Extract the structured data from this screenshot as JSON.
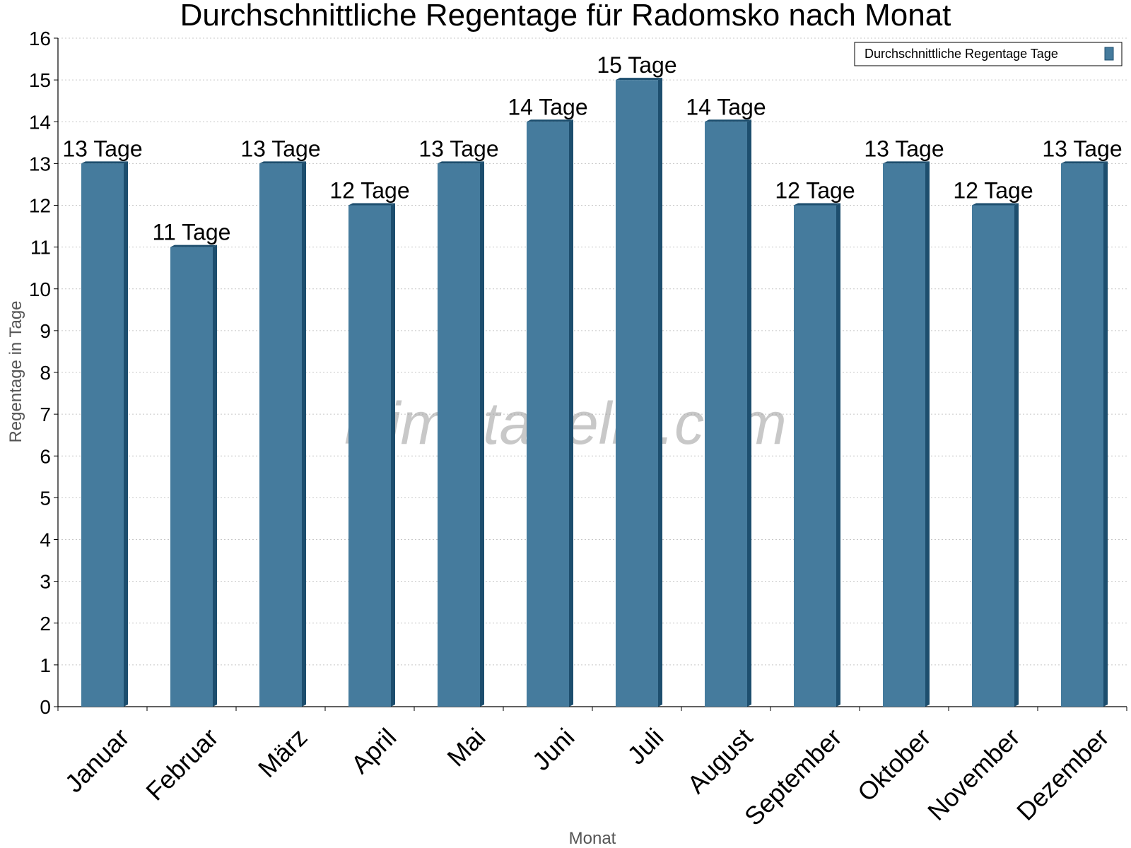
{
  "chart_data": {
    "type": "bar",
    "title": "Durchschnittliche Regentage für Radomsko nach Monat",
    "xlabel": "Monat",
    "ylabel": "Regentage in Tage",
    "ylim": [
      0,
      16
    ],
    "yticks": [
      "0",
      "1",
      "2",
      "3",
      "4",
      "5",
      "6",
      "7",
      "8",
      "9",
      "10",
      "11",
      "12",
      "13",
      "14",
      "15",
      "16"
    ],
    "grid": true,
    "legend_position": "top-right",
    "categories": [
      "Januar",
      "Februar",
      "März",
      "April",
      "Mai",
      "Juni",
      "Juli",
      "August",
      "September",
      "Oktober",
      "November",
      "Dezember"
    ],
    "series": [
      {
        "name": "Durchschnittliche Regentage Tage",
        "values": [
          13,
          11,
          13,
          12,
          13,
          14,
          15,
          14,
          12,
          13,
          12,
          13
        ],
        "labels": [
          "13 Tage",
          "11 Tage",
          "13 Tage",
          "12 Tage",
          "13 Tage",
          "14 Tage",
          "15 Tage",
          "14 Tage",
          "12 Tage",
          "13 Tage",
          "12 Tage",
          "13 Tage"
        ],
        "color": "#457b9d",
        "edge_color": "#1d4e6e"
      }
    ],
    "watermark": "klimatabelle.com"
  }
}
